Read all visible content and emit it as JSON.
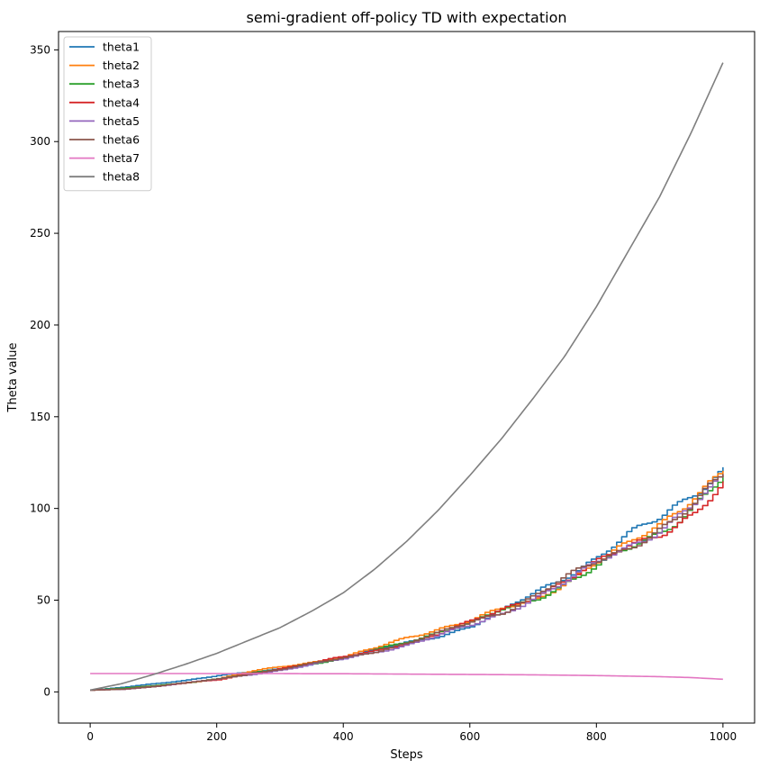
{
  "chart_data": {
    "type": "line",
    "title": "semi-gradient off-policy TD with expectation",
    "xlabel": "Steps",
    "ylabel": "Theta value",
    "xlim": [
      -50,
      1050
    ],
    "ylim": [
      -17,
      360
    ],
    "xticks": [
      0,
      200,
      400,
      600,
      800,
      1000
    ],
    "yticks": [
      0,
      50,
      100,
      150,
      200,
      250,
      300,
      350
    ],
    "xtick_labels": [
      "0",
      "200",
      "400",
      "600",
      "800",
      "1000"
    ],
    "ytick_labels": [
      "0",
      "50",
      "100",
      "150",
      "200",
      "250",
      "300",
      "350"
    ],
    "grid": false,
    "legend_position": "top-left",
    "x": [
      0,
      50,
      100,
      150,
      200,
      250,
      300,
      350,
      400,
      450,
      500,
      550,
      600,
      650,
      700,
      750,
      800,
      850,
      900,
      950,
      1000
    ],
    "series": [
      {
        "name": "theta1",
        "color": "#1f77b4",
        "values": [
          1,
          2.5,
          4.5,
          6.5,
          9,
          10.5,
          12.5,
          15.5,
          18.5,
          23,
          27,
          31,
          36,
          44,
          54,
          64,
          74,
          85,
          95,
          110,
          122
        ]
      },
      {
        "name": "theta2",
        "color": "#ff7f0e",
        "values": [
          1,
          2,
          3.5,
          5,
          7,
          11,
          14,
          16.5,
          19,
          24,
          30,
          35,
          39,
          45,
          50,
          61,
          71,
          80,
          92,
          108,
          121
        ]
      },
      {
        "name": "theta3",
        "color": "#2ca02c",
        "values": [
          1,
          2,
          3.5,
          5,
          7,
          10,
          13,
          15.5,
          18,
          23,
          28,
          33,
          37,
          45,
          51,
          60,
          68,
          78,
          88,
          102,
          117
        ]
      },
      {
        "name": "theta4",
        "color": "#d62728",
        "values": [
          1,
          1.5,
          3,
          5,
          6.5,
          10,
          13,
          16,
          19,
          22.5,
          27,
          32,
          38,
          45,
          53,
          61,
          70,
          80,
          88,
          97,
          111
        ]
      },
      {
        "name": "theta5",
        "color": "#9467bd",
        "values": [
          1,
          1.5,
          3,
          5,
          7,
          9.5,
          12,
          15,
          18,
          22,
          26,
          31,
          36,
          43,
          52,
          60,
          70,
          80,
          90,
          102,
          115
        ]
      },
      {
        "name": "theta6",
        "color": "#8c564b",
        "values": [
          1,
          1.5,
          3,
          5,
          7,
          10,
          12.5,
          15.5,
          18.5,
          22.5,
          27,
          32,
          38,
          44,
          53,
          62,
          71,
          80,
          90,
          100,
          119
        ]
      },
      {
        "name": "theta7",
        "color": "#e377c2",
        "values": [
          10,
          10,
          10,
          10,
          10,
          10,
          10,
          9.9,
          9.9,
          9.8,
          9.7,
          9.6,
          9.5,
          9.4,
          9.3,
          9.1,
          8.9,
          8.6,
          8.3,
          7.8,
          6.9
        ]
      },
      {
        "name": "theta8",
        "color": "#7f7f7f",
        "values": [
          1,
          4.5,
          9.5,
          15,
          21,
          28,
          35,
          44,
          54,
          67,
          82,
          99,
          118,
          138,
          160,
          183,
          210,
          240,
          270,
          305,
          343
        ]
      }
    ]
  }
}
